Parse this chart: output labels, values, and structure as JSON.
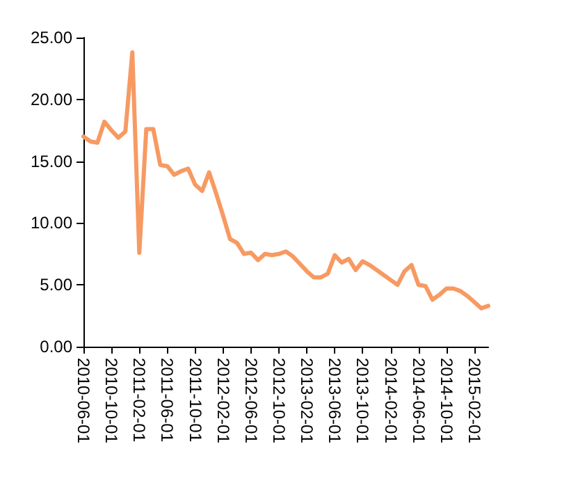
{
  "chart_data": {
    "type": "line",
    "categories": [
      "2010-06-01",
      null,
      null,
      null,
      "2010-10-01",
      null,
      null,
      null,
      "2011-02-01",
      null,
      null,
      null,
      "2011-06-01",
      null,
      null,
      null,
      "2011-10-01",
      null,
      null,
      null,
      "2012-02-01",
      null,
      null,
      null,
      "2012-06-01",
      null,
      null,
      null,
      "2012-10-01",
      null,
      null,
      null,
      "2013-02-01",
      null,
      null,
      null,
      "2013-06-01",
      null,
      null,
      null,
      "2013-10-01",
      null,
      null,
      null,
      "2014-02-01",
      null,
      null,
      null,
      "2014-06-01",
      null,
      null,
      null,
      "2014-10-01",
      null,
      null,
      null,
      "2015-02-01",
      null,
      null
    ],
    "values": [
      17.0,
      16.6,
      16.5,
      18.2,
      17.5,
      16.9,
      17.4,
      23.8,
      7.6,
      17.6,
      17.6,
      14.7,
      14.6,
      13.9,
      14.2,
      14.4,
      13.1,
      12.6,
      14.1,
      12.4,
      10.6,
      8.7,
      8.4,
      7.5,
      7.6,
      7.0,
      7.5,
      7.4,
      7.5,
      7.7,
      7.3,
      6.7,
      6.1,
      5.6,
      5.6,
      5.9,
      7.4,
      6.8,
      7.1,
      6.2,
      6.9,
      6.6,
      6.2,
      5.8,
      5.4,
      5.0,
      6.1,
      6.6,
      5.0,
      4.9,
      3.8,
      4.2,
      4.7,
      4.7,
      4.5,
      4.1,
      3.6,
      3.1,
      3.3
    ],
    "color": "#f79a62",
    "ylim": [
      0,
      25
    ],
    "yticks": [
      {
        "value": 0,
        "label": "0.00"
      },
      {
        "value": 5,
        "label": "5.00"
      },
      {
        "value": 10,
        "label": "10.00"
      },
      {
        "value": 15,
        "label": "15.00"
      },
      {
        "value": 20,
        "label": "20.00"
      },
      {
        "value": 25,
        "label": "25.00"
      }
    ],
    "grid": false,
    "marker": "none",
    "line_style": "solid"
  }
}
